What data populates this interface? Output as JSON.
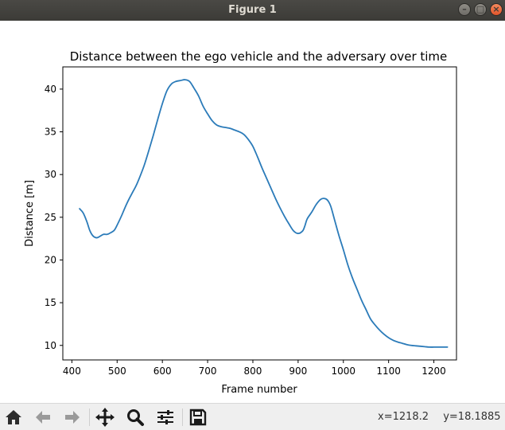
{
  "window": {
    "title": "Figure 1",
    "controls": {
      "minimize": "–",
      "maximize": "□",
      "close": "×"
    }
  },
  "toolbar": {
    "buttons": [
      "home-icon",
      "back-icon",
      "forward-icon",
      "pan-icon",
      "zoom-icon",
      "configure-subplots-icon",
      "save-icon"
    ],
    "coords": {
      "x": "x=1218.2",
      "y": "y=18.1885"
    }
  },
  "chart_data": {
    "type": "line",
    "title": "Distance between the ego vehicle and the adversary over time",
    "xlabel": "Frame number",
    "ylabel": "Distance [m]",
    "xlim": [
      380,
      1250
    ],
    "ylim": [
      8.3,
      42.6
    ],
    "xticks": [
      400,
      500,
      600,
      700,
      800,
      900,
      1000,
      1100,
      1200
    ],
    "yticks": [
      10,
      15,
      20,
      25,
      30,
      35,
      40
    ],
    "grid": false,
    "line_color": "#2b7bb9",
    "series": [
      {
        "x": [
          417,
          425,
          433,
          440,
          447,
          455,
          463,
          470,
          478,
          486,
          494,
          502,
          510,
          518,
          526,
          534,
          542,
          550,
          560,
          570,
          580,
          590,
          600,
          610,
          620,
          630,
          640,
          650,
          660,
          670,
          680,
          690,
          700,
          710,
          720,
          730,
          740,
          750,
          760,
          770,
          780,
          790,
          800,
          810,
          820,
          830,
          840,
          850,
          860,
          870,
          880,
          890,
          900,
          910,
          915,
          920,
          930,
          940,
          950,
          958,
          965,
          972,
          980,
          990,
          1000,
          1010,
          1020,
          1030,
          1040,
          1050,
          1060,
          1070,
          1080,
          1090,
          1100,
          1110,
          1120,
          1130,
          1140,
          1150,
          1160,
          1170,
          1180,
          1190,
          1200,
          1210,
          1220,
          1230
        ],
        "y": [
          26.0,
          25.5,
          24.5,
          23.4,
          22.8,
          22.6,
          22.8,
          23.0,
          23.0,
          23.2,
          23.5,
          24.3,
          25.2,
          26.2,
          27.1,
          27.9,
          28.7,
          29.7,
          31.1,
          32.8,
          34.6,
          36.5,
          38.3,
          39.8,
          40.6,
          40.9,
          41.0,
          41.1,
          40.9,
          40.1,
          39.2,
          38.0,
          37.1,
          36.3,
          35.8,
          35.6,
          35.5,
          35.4,
          35.2,
          35.0,
          34.7,
          34.1,
          33.3,
          32.1,
          30.8,
          29.6,
          28.4,
          27.2,
          26.1,
          25.1,
          24.2,
          23.4,
          23.1,
          23.4,
          24.0,
          24.8,
          25.6,
          26.5,
          27.1,
          27.2,
          27.0,
          26.3,
          24.8,
          22.9,
          21.2,
          19.4,
          17.9,
          16.6,
          15.3,
          14.2,
          13.1,
          12.4,
          11.8,
          11.3,
          10.9,
          10.6,
          10.4,
          10.25,
          10.1,
          10.0,
          9.95,
          9.9,
          9.85,
          9.8,
          9.8,
          9.8,
          9.8,
          9.8
        ]
      }
    ]
  }
}
